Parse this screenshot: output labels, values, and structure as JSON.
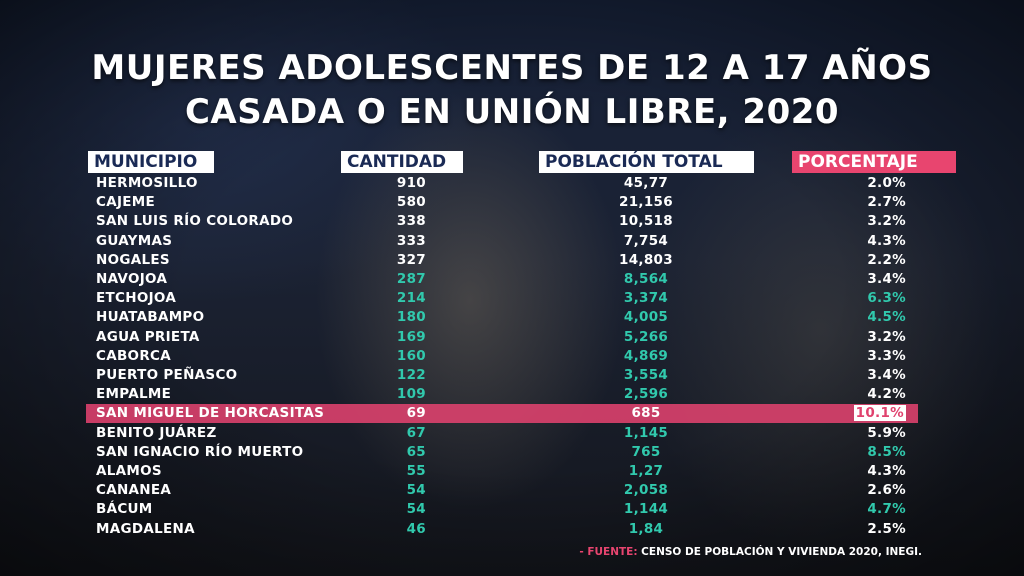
{
  "title_line1": "MUJERES ADOLESCENTES DE 12 A 17 AÑOS",
  "title_line2": "CASADA O EN UNIÓN LIBRE, 2020",
  "headers": {
    "municipio": "MUNICIPIO",
    "cantidad": "CANTIDAD",
    "poblacion": "POBLACIÓN TOTAL",
    "porcentaje": "PORCENTAJE"
  },
  "colors": {
    "accent_pink": "#e8456f",
    "teal": "#31c9ad",
    "navy": "#1a2a55"
  },
  "chart_data": {
    "type": "table",
    "title": "MUJERES ADOLESCENTES DE 12 A 17 AÑOS CASADA O EN UNIÓN LIBRE, 2020",
    "columns": [
      "MUNICIPIO",
      "CANTIDAD",
      "POBLACIÓN TOTAL",
      "PORCENTAJE"
    ],
    "rows": [
      {
        "municipio": "HERMOSILLO",
        "cantidad": "910",
        "poblacion": "45,77",
        "porcentaje": "2.0%",
        "teal_values": false,
        "teal_pct": false,
        "highlight": false
      },
      {
        "municipio": "CAJEME",
        "cantidad": "580",
        "poblacion": "21,156",
        "porcentaje": "2.7%",
        "teal_values": false,
        "teal_pct": false,
        "highlight": false
      },
      {
        "municipio": "SAN LUIS RÍO COLORADO",
        "cantidad": "338",
        "poblacion": "10,518",
        "porcentaje": "3.2%",
        "teal_values": false,
        "teal_pct": false,
        "highlight": false
      },
      {
        "municipio": "GUAYMAS",
        "cantidad": "333",
        "poblacion": "7,754",
        "porcentaje": "4.3%",
        "teal_values": false,
        "teal_pct": false,
        "highlight": false
      },
      {
        "municipio": "NOGALES",
        "cantidad": "327",
        "poblacion": "14,803",
        "porcentaje": "2.2%",
        "teal_values": false,
        "teal_pct": false,
        "highlight": false
      },
      {
        "municipio": "NAVOJOA",
        "cantidad": "287",
        "poblacion": "8,564",
        "porcentaje": "3.4%",
        "teal_values": true,
        "teal_pct": false,
        "highlight": false
      },
      {
        "municipio": "ETCHOJOA",
        "cantidad": "214",
        "poblacion": "3,374",
        "porcentaje": "6.3%",
        "teal_values": true,
        "teal_pct": true,
        "highlight": false
      },
      {
        "municipio": "HUATABAMPO",
        "cantidad": "180",
        "poblacion": "4,005",
        "porcentaje": "4.5%",
        "teal_values": true,
        "teal_pct": true,
        "highlight": false
      },
      {
        "municipio": "AGUA PRIETA",
        "cantidad": "169",
        "poblacion": "5,266",
        "porcentaje": "3.2%",
        "teal_values": true,
        "teal_pct": false,
        "highlight": false
      },
      {
        "municipio": "CABORCA",
        "cantidad": "160",
        "poblacion": "4,869",
        "porcentaje": "3.3%",
        "teal_values": true,
        "teal_pct": false,
        "highlight": false
      },
      {
        "municipio": "PUERTO PEÑASCO",
        "cantidad": "122",
        "poblacion": "3,554",
        "porcentaje": "3.4%",
        "teal_values": true,
        "teal_pct": false,
        "highlight": false
      },
      {
        "municipio": "EMPALME",
        "cantidad": "109",
        "poblacion": "2,596",
        "porcentaje": "4.2%",
        "teal_values": true,
        "teal_pct": false,
        "highlight": false
      },
      {
        "municipio": "SAN MIGUEL DE HORCASITAS",
        "cantidad": "69",
        "poblacion": "685",
        "porcentaje": "10.1%",
        "teal_values": false,
        "teal_pct": false,
        "highlight": true
      },
      {
        "municipio": "BENITO JUÁREZ",
        "cantidad": "67",
        "poblacion": "1,145",
        "porcentaje": "5.9%",
        "teal_values": true,
        "teal_pct": false,
        "highlight": false
      },
      {
        "municipio": "SAN IGNACIO RÍO MUERTO",
        "cantidad": "65",
        "poblacion": "765",
        "porcentaje": "8.5%",
        "teal_values": true,
        "teal_pct": true,
        "highlight": false
      },
      {
        "municipio": "ALAMOS",
        "cantidad": "55",
        "poblacion": "1,27",
        "porcentaje": "4.3%",
        "teal_values": true,
        "teal_pct": false,
        "highlight": false
      },
      {
        "municipio": "CANANEA",
        "cantidad": "54",
        "poblacion": "2,058",
        "porcentaje": "2.6%",
        "teal_values": true,
        "teal_pct": false,
        "highlight": false
      },
      {
        "municipio": "BÁCUM",
        "cantidad": "54",
        "poblacion": "1,144",
        "porcentaje": "4.7%",
        "teal_values": true,
        "teal_pct": true,
        "highlight": false
      },
      {
        "municipio": "MAGDALENA",
        "cantidad": "46",
        "poblacion": "1,84",
        "porcentaje": "2.5%",
        "teal_values": true,
        "teal_pct": false,
        "highlight": false
      }
    ]
  },
  "source": {
    "label": "- FUENTE:",
    "text": " CENSO DE POBLACIÓN Y VIVIENDA 2020, INEGI."
  }
}
